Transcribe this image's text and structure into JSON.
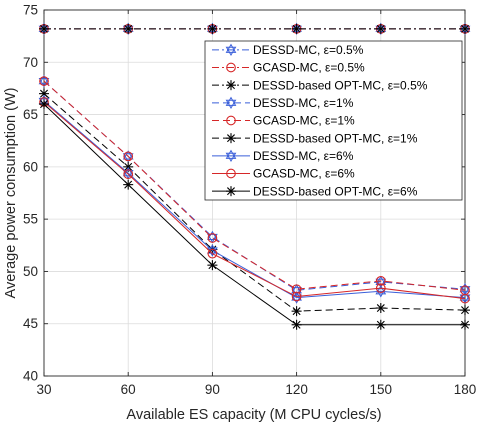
{
  "chart_data": {
    "type": "line",
    "title": "",
    "xlabel": "Available ES capacity (M CPU cycles/s)",
    "ylabel": "Average power consumption (W)",
    "x": [
      30,
      60,
      90,
      120,
      150,
      180
    ],
    "xlim": [
      30,
      180
    ],
    "ylim": [
      40,
      75
    ],
    "xticks": [
      "30",
      "60",
      "90",
      "120",
      "150",
      "180"
    ],
    "yticks": [
      "40",
      "45",
      "50",
      "55",
      "60",
      "65",
      "70",
      "75"
    ],
    "grid": true,
    "legend_position": "top-right",
    "series": [
      {
        "name": "DESSD-MC, ε=0.5%",
        "color": "#3a5fd9",
        "dash": "7 3 2 3",
        "marker": "hexagram",
        "values": [
          73.2,
          73.2,
          73.2,
          73.2,
          73.2,
          73.2
        ]
      },
      {
        "name": "GCASD-MC, ε=0.5%",
        "color": "#d62728",
        "dash": "7 3 2 3",
        "marker": "circle",
        "values": [
          73.2,
          73.2,
          73.2,
          73.2,
          73.2,
          73.2
        ]
      },
      {
        "name": "DESSD-based OPT-MC, ε=0.5%",
        "color": "#000000",
        "dash": "7 3 2 3",
        "marker": "asterisk",
        "values": [
          73.2,
          73.2,
          73.2,
          73.2,
          73.2,
          73.2
        ]
      },
      {
        "name": "DESSD-MC, ε=1%",
        "color": "#3a5fd9",
        "dash": "7 4",
        "marker": "hexagram",
        "values": [
          68.2,
          61.0,
          53.3,
          48.2,
          49.0,
          48.3
        ]
      },
      {
        "name": "GCASD-MC, ε=1%",
        "color": "#d62728",
        "dash": "7 4",
        "marker": "circle",
        "values": [
          68.2,
          61.0,
          53.2,
          48.3,
          49.1,
          48.2
        ]
      },
      {
        "name": "DESSD-based OPT-MC, ε=1%",
        "color": "#000000",
        "dash": "7 4",
        "marker": "asterisk",
        "values": [
          67.0,
          60.0,
          52.1,
          46.2,
          46.5,
          46.3
        ]
      },
      {
        "name": "DESSD-MC, ε=6%",
        "color": "#3a5fd9",
        "dash": "",
        "marker": "hexagram",
        "values": [
          66.3,
          59.4,
          52.0,
          47.5,
          48.1,
          47.5
        ]
      },
      {
        "name": "GCASD-MC, ε=6%",
        "color": "#d62728",
        "dash": "",
        "marker": "circle",
        "values": [
          66.2,
          59.3,
          51.7,
          47.6,
          48.4,
          47.4
        ]
      },
      {
        "name": "DESSD-based OPT-MC, ε=6%",
        "color": "#000000",
        "dash": "",
        "marker": "asterisk",
        "values": [
          66.0,
          58.3,
          50.6,
          44.9,
          44.9,
          44.9
        ]
      }
    ]
  }
}
